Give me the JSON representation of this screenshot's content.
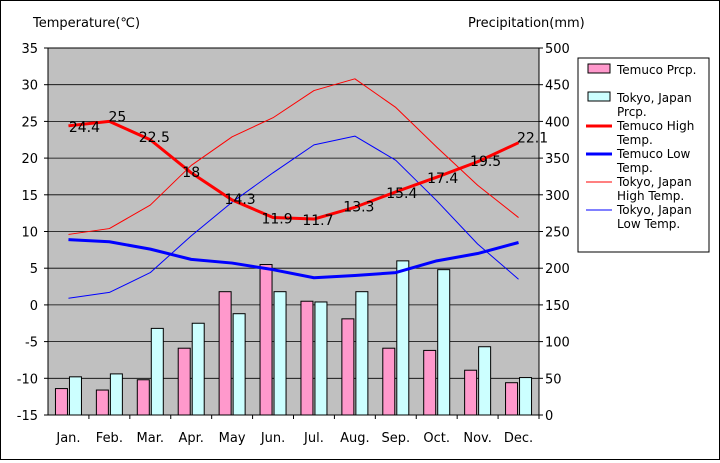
{
  "chart_data": {
    "type": "bar+line",
    "y_left_label": "Temperature(℃)",
    "y_right_label": "Precipitation(mm)",
    "y_left_range": [
      -15,
      35
    ],
    "y_right_range": [
      0,
      500
    ],
    "y_left_ticks": [
      "35",
      "30",
      "25",
      "20",
      "15",
      "10",
      "5",
      "0",
      "-5",
      "-10",
      "-15"
    ],
    "y_right_ticks": [
      "500",
      "450",
      "400",
      "350",
      "300",
      "250",
      "200",
      "150",
      "100",
      "50",
      "0"
    ],
    "grid": true,
    "legend_position": "right",
    "categories": [
      "Jan.",
      "Feb.",
      "Mar.",
      "Apr.",
      "May",
      "Jun.",
      "Jul.",
      "Aug.",
      "Sep.",
      "Oct.",
      "Nov.",
      "Dec."
    ],
    "bar_series": [
      {
        "name": "Temuco Prcp.",
        "color": "#ff99cc",
        "axis": "right",
        "values": [
          36,
          34,
          48,
          91,
          168,
          205,
          155,
          131,
          91,
          88,
          61,
          44
        ]
      },
      {
        "name": "Tokyo, Japan Prcp.",
        "color": "#ccffff",
        "axis": "right",
        "values": [
          52,
          56,
          118,
          125,
          138,
          168,
          154,
          168,
          210,
          198,
          93,
          51
        ]
      }
    ],
    "line_series": [
      {
        "name": "Temuco High Temp.",
        "color": "#ff0000",
        "width": 3,
        "axis": "left",
        "values": [
          24.4,
          25,
          22.5,
          18,
          14.3,
          11.9,
          11.7,
          13.3,
          15.4,
          17.4,
          19.5,
          22.1
        ],
        "labels": [
          "24.4",
          "25",
          "22.5",
          "18",
          "14.3",
          "11.9",
          "11.7",
          "13.3",
          "15.4",
          "17.4",
          "19.5",
          "22.1"
        ]
      },
      {
        "name": "Temuco Low Temp.",
        "color": "#0000ff",
        "width": 3,
        "axis": "left",
        "values": [
          8.9,
          8.6,
          7.6,
          6.2,
          5.7,
          4.8,
          3.7,
          4.0,
          4.4,
          6.0,
          7.0,
          8.5
        ]
      },
      {
        "name": "Tokyo, Japan High Temp.",
        "color": "#ff0000",
        "width": 1,
        "axis": "left",
        "values": [
          9.6,
          10.4,
          13.6,
          19.0,
          22.9,
          25.5,
          29.2,
          30.8,
          26.9,
          21.5,
          16.3,
          11.9
        ]
      },
      {
        "name": "Tokyo, Japan Low Temp.",
        "color": "#0000ff",
        "width": 1,
        "axis": "left",
        "values": [
          0.9,
          1.7,
          4.4,
          9.4,
          14.0,
          18.0,
          21.8,
          23.0,
          19.7,
          14.2,
          8.3,
          3.5
        ]
      }
    ],
    "legend": [
      {
        "kind": "bar",
        "color": "#ff99cc",
        "lines": [
          "Temuco Prcp."
        ]
      },
      {
        "kind": "bar",
        "color": "#ccffff",
        "lines": [
          "Tokyo, Japan",
          "Prcp."
        ]
      },
      {
        "kind": "line",
        "color": "#ff0000",
        "width": 3,
        "lines": [
          "Temuco High",
          "Temp."
        ]
      },
      {
        "kind": "line",
        "color": "#0000ff",
        "width": 3,
        "lines": [
          "Temuco Low",
          "Temp."
        ]
      },
      {
        "kind": "line",
        "color": "#ff0000",
        "width": 1,
        "lines": [
          "Tokyo, Japan",
          "High Temp."
        ]
      },
      {
        "kind": "line",
        "color": "#0000ff",
        "width": 1,
        "lines": [
          "Tokyo, Japan",
          "Low Temp."
        ]
      }
    ],
    "plot_background": "#c0c0c0"
  }
}
